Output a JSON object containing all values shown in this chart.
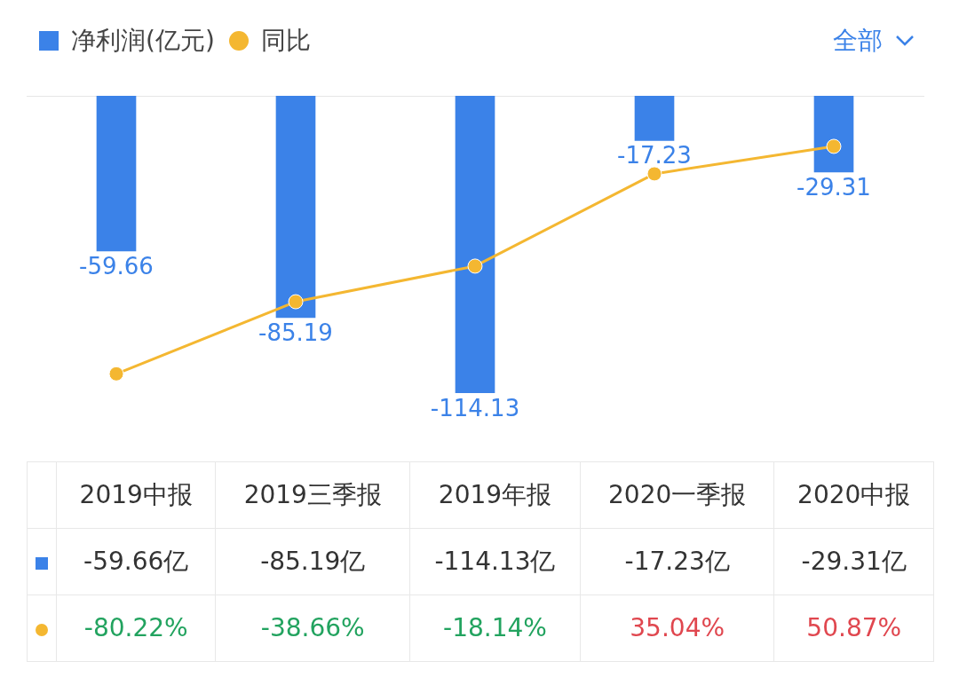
{
  "chart_data": {
    "type": "bar",
    "categories": [
      "2019中报",
      "2019三季报",
      "2019年报",
      "2020一季报",
      "2020中报"
    ],
    "series": [
      {
        "name": "净利润(亿元)",
        "color": "#3b82e8",
        "values": [
          -59.66,
          -85.19,
          -114.13,
          -17.23,
          -29.31
        ],
        "value_labels": [
          "-59.66",
          "-85.19",
          "-114.13",
          "-17.23",
          "-29.31"
        ]
      },
      {
        "name": "同比",
        "type": "line",
        "axis": "y2",
        "color": "#f4b731",
        "values": [
          -80.22,
          -38.66,
          -18.14,
          35.04,
          50.87
        ],
        "value_labels": [
          "-80.22%",
          "-38.66%",
          "-18.14%",
          "35.04%",
          "50.87%"
        ]
      }
    ],
    "legend": "top left",
    "marker": "circle",
    "grid": false,
    "annotations": [
      "全部",
      "-59.66亿",
      "-85.19亿",
      "-114.13亿",
      "-17.23亿",
      "-29.31亿"
    ]
  }
}
